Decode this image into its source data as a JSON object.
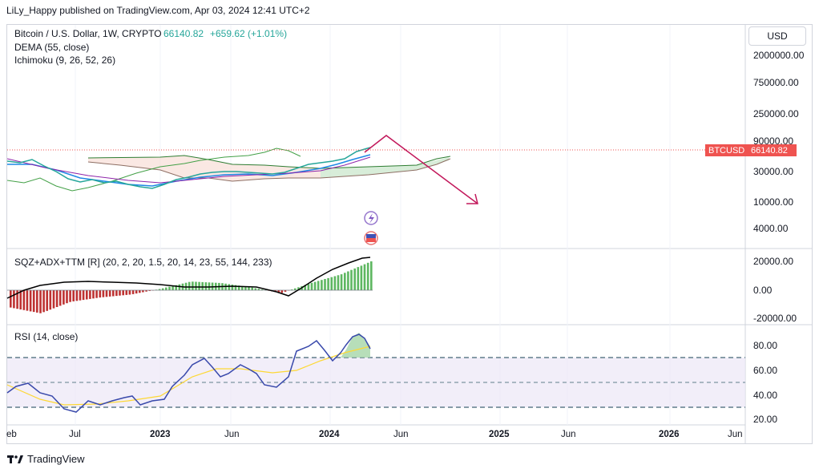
{
  "caption": "LiLy_Happy published on TradingView.com, Apr 03, 2024 12:41 UTC+2",
  "currency_button": "USD",
  "price_legend": {
    "symbol": "Bitcoin / U.S. Dollar, 1W, CRYPTO",
    "price": "66140.82",
    "change": "+659.62 (+1.01%)",
    "dema": "DEMA (55, close)",
    "ichimoku": "Ichimoku (9, 26, 52, 26)"
  },
  "sqz_legend": "SQZ+ADX+TTM [R] (20, 2, 20, 1.5, 20, 14, 23, 55, 144, 233)",
  "rsi_legend": "RSI (14, close)",
  "price_tag": {
    "symbol": "BTCUSD",
    "value": "66140.82"
  },
  "footer": "TradingView",
  "colors": {
    "up": "#26a69a",
    "down": "#ef5350",
    "squeeze_green": "#4caf50",
    "squeeze_red": "#b71c1c",
    "rsi": "#7e57c2",
    "arrow": "#c2185b"
  },
  "icons": [
    "lightning-icon",
    "flag-icon",
    "tradingview-logo"
  ],
  "chart_data": [
    {
      "type": "line",
      "name": "price",
      "y_axis": {
        "scale": "log",
        "ticks": [
          "2000000.00",
          "750000.00",
          "250000.00",
          "90000.00",
          "30000.00",
          "10000.00",
          "4000.00"
        ]
      },
      "x_ticks": [
        "eb",
        "Jul",
        "2023",
        "Jun",
        "2024",
        "Jun",
        "2025",
        "Jun",
        "2026",
        "Jun"
      ],
      "x": [
        "2022-03",
        "2022-05",
        "2022-07",
        "2022-09",
        "2022-11",
        "2023-01",
        "2023-03",
        "2023-05",
        "2023-07",
        "2023-09",
        "2023-11",
        "2024-01",
        "2024-03"
      ],
      "values": [
        42000,
        35000,
        21000,
        20000,
        16500,
        17000,
        25000,
        27500,
        29500,
        26500,
        36000,
        43000,
        66140
      ],
      "last_value": 66140.82
    },
    {
      "type": "bar",
      "name": "SQZ+ADX+TTM",
      "y_axis": {
        "ticks": [
          "20000.00",
          "0.00",
          "-20000.00"
        ]
      },
      "x": [
        "2022-03",
        "2022-05",
        "2022-07",
        "2022-09",
        "2022-11",
        "2023-01",
        "2023-03",
        "2023-05",
        "2023-07",
        "2023-09",
        "2023-11",
        "2024-01",
        "2024-03"
      ],
      "values": [
        -12000,
        -16000,
        -8000,
        -5000,
        -3000,
        1000,
        6000,
        5000,
        2000,
        -2000,
        5000,
        11000,
        20000
      ]
    },
    {
      "type": "line",
      "name": "RSI",
      "y_axis": {
        "ticks": [
          "80.00",
          "60.00",
          "40.00",
          "20.00"
        ],
        "ylim": [
          20,
          90
        ]
      },
      "bands": [
        30,
        50,
        70
      ],
      "x": [
        "2022-03",
        "2022-05",
        "2022-07",
        "2022-09",
        "2022-11",
        "2023-01",
        "2023-03",
        "2023-05",
        "2023-07",
        "2023-09",
        "2023-11",
        "2024-01",
        "2024-03"
      ],
      "values": [
        45,
        36,
        30,
        36,
        33,
        47,
        63,
        59,
        52,
        44,
        72,
        68,
        83
      ]
    }
  ]
}
